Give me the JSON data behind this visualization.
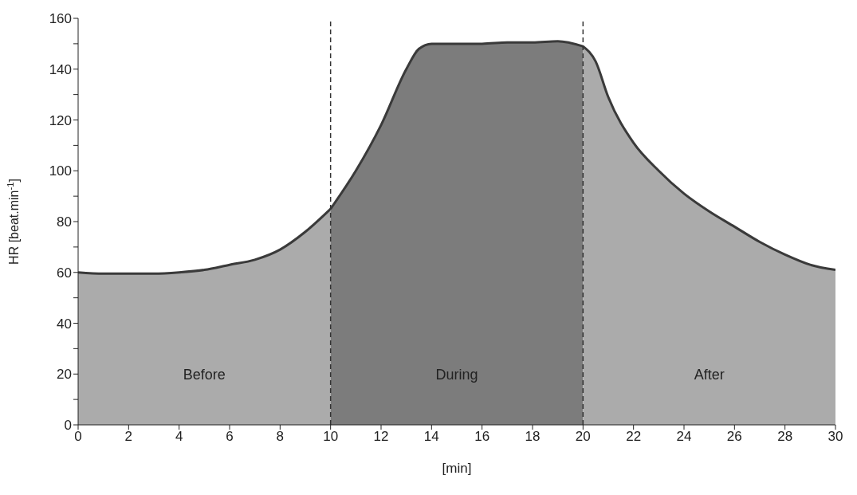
{
  "chart_data": {
    "type": "area",
    "xlabel": "[min]",
    "ylabel": "HR [beat.min$^{-1}$]",
    "series": [
      {
        "name": "Before",
        "color": "#ababab",
        "x": [
          0,
          1,
          2,
          3,
          4,
          5,
          6,
          7,
          8,
          9,
          10
        ],
        "values": [
          60,
          59.5,
          59.5,
          59.5,
          60,
          61,
          63,
          65,
          69,
          76,
          85
        ]
      },
      {
        "name": "During",
        "color": "#7c7c7c",
        "x": [
          10,
          11,
          12,
          13,
          13.5,
          14,
          15,
          16,
          17,
          18,
          19,
          20
        ],
        "values": [
          85,
          100,
          118,
          140,
          148,
          150,
          150,
          150,
          150.5,
          150.5,
          151,
          149
        ]
      },
      {
        "name": "After",
        "color": "#ababab",
        "x": [
          20,
          20.5,
          21,
          22,
          23,
          24,
          25,
          26,
          27,
          28,
          29,
          30
        ],
        "values": [
          149,
          143,
          129,
          111,
          100,
          91,
          84,
          78,
          72,
          67,
          63,
          61
        ]
      }
    ],
    "xlim": [
      0,
      30
    ],
    "xticks": [
      0,
      2,
      4,
      6,
      8,
      10,
      12,
      14,
      16,
      18,
      20,
      22,
      24,
      26,
      28,
      30
    ],
    "ylim": [
      0,
      160
    ],
    "yticks": [
      0,
      {
        "value": 10,
        "label": null
      },
      20,
      {
        "value": 30,
        "label": null
      },
      40,
      {
        "value": 50,
        "label": null
      },
      60,
      {
        "value": 70,
        "label": null
      },
      80,
      {
        "value": 90,
        "label": null
      },
      100,
      {
        "value": 110,
        "label": null
      },
      120,
      {
        "value": 130,
        "label": null
      },
      140,
      {
        "value": 150,
        "label": null
      },
      160
    ],
    "ref_lines": [
      {
        "axis": "x",
        "value": 10,
        "color": "#333333",
        "line_style": "dashed"
      },
      {
        "axis": "x",
        "value": 20,
        "color": "#333333",
        "line_style": "dashed"
      }
    ],
    "grid": false,
    "legend": false,
    "marker": "none"
  }
}
